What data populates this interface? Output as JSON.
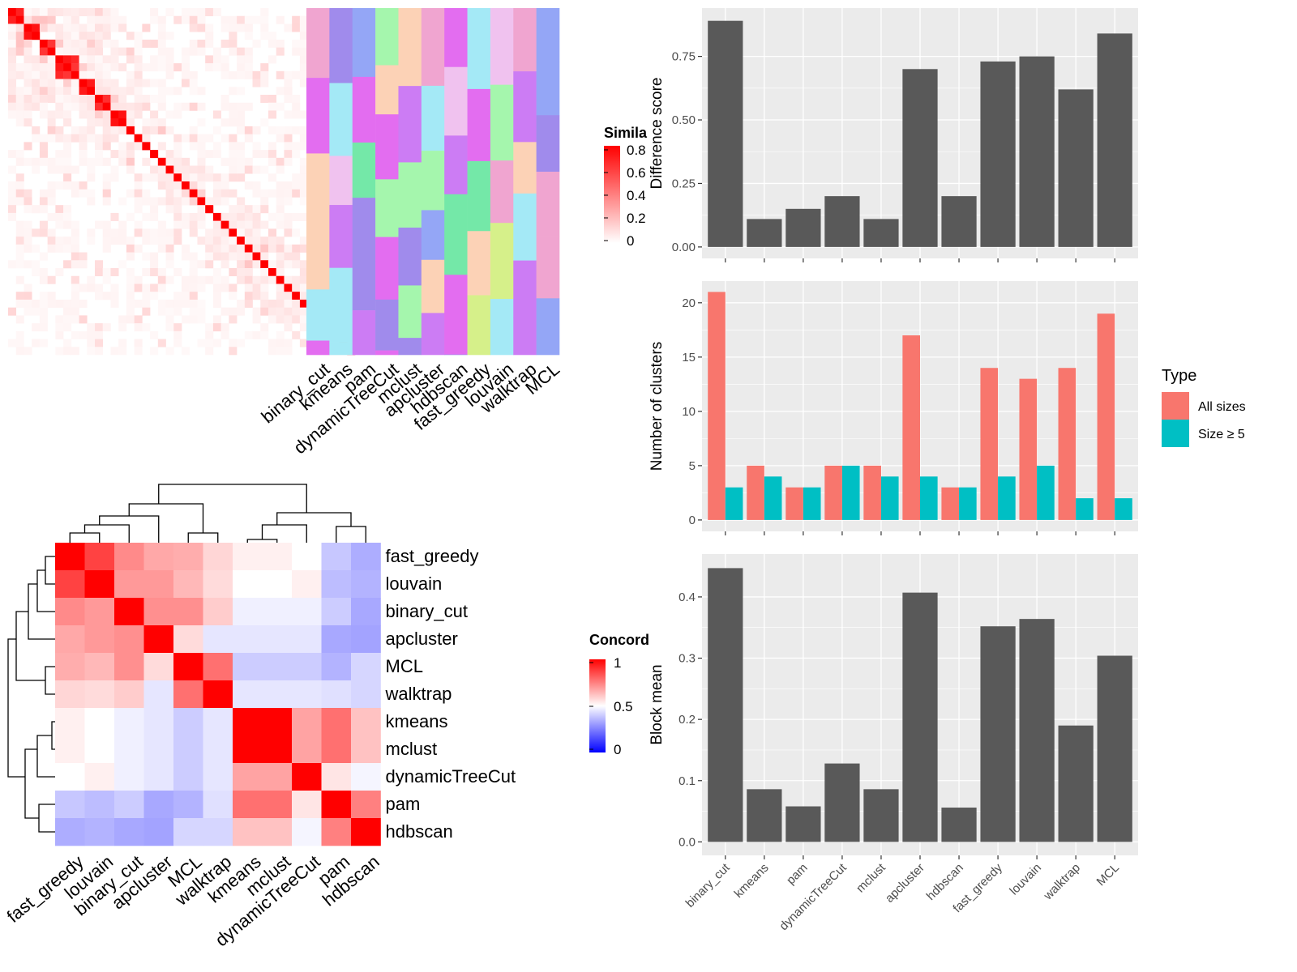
{
  "colors": {
    "panel_bg": "#ebebeb",
    "grid": "#ffffff",
    "bar": "#595959",
    "all_sizes": "#f8766d",
    "size5": "#00bfc4",
    "heat_high": "#ff0000",
    "heat_mid": "#ffffff",
    "heat_low": "#0000ff"
  },
  "chart_data": [
    {
      "type": "heatmap",
      "id": "similarity_matrix",
      "legend_title": "Simila",
      "legend_ticks": [
        "0.8",
        "0.6",
        "0.4",
        "0.2",
        "0"
      ],
      "block_sizes": [
        2,
        2,
        2,
        3,
        2,
        2,
        2,
        1,
        1,
        1,
        1,
        1,
        1,
        1,
        1,
        1,
        1,
        1,
        1,
        1,
        1,
        1,
        1,
        1,
        1,
        1,
        1,
        1,
        1,
        1,
        1,
        1,
        1,
        1,
        1,
        1
      ],
      "annotation_columns": [
        "binary_cut",
        "kmeans",
        "pam",
        "dynamicTreeCut",
        "mclust",
        "apcluster",
        "hdbscan",
        "fast_greedy",
        "louvain",
        "walktrap",
        "MCL"
      ]
    },
    {
      "type": "heatmap",
      "id": "concordance_matrix",
      "legend_title": "Concord",
      "legend_ticks": [
        "1",
        "0.5",
        "0"
      ],
      "rows": [
        "fast_greedy",
        "louvain",
        "binary_cut",
        "apcluster",
        "MCL",
        "walktrap",
        "kmeans",
        "mclust",
        "dynamicTreeCut",
        "pam",
        "hdbscan"
      ],
      "columns": [
        "fast_greedy",
        "louvain",
        "binary_cut",
        "apcluster",
        "MCL",
        "walktrap",
        "kmeans",
        "mclust",
        "dynamicTreeCut",
        "pam",
        "hdbscan"
      ],
      "values": [
        [
          1.0,
          0.87,
          0.73,
          0.67,
          0.66,
          0.58,
          0.53,
          0.53,
          0.5,
          0.39,
          0.34
        ],
        [
          0.87,
          1.0,
          0.7,
          0.7,
          0.64,
          0.57,
          0.5,
          0.5,
          0.53,
          0.37,
          0.35
        ],
        [
          0.73,
          0.7,
          1.0,
          0.72,
          0.72,
          0.6,
          0.47,
          0.47,
          0.47,
          0.4,
          0.33
        ],
        [
          0.67,
          0.7,
          0.72,
          1.0,
          0.57,
          0.45,
          0.45,
          0.45,
          0.45,
          0.33,
          0.32
        ],
        [
          0.66,
          0.64,
          0.72,
          0.57,
          1.0,
          0.78,
          0.4,
          0.4,
          0.4,
          0.35,
          0.42
        ],
        [
          0.58,
          0.57,
          0.6,
          0.45,
          0.78,
          1.0,
          0.45,
          0.45,
          0.45,
          0.44,
          0.42
        ],
        [
          0.53,
          0.5,
          0.47,
          0.45,
          0.4,
          0.45,
          1.0,
          1.0,
          0.68,
          0.78,
          0.62
        ],
        [
          0.53,
          0.5,
          0.47,
          0.45,
          0.4,
          0.45,
          1.0,
          1.0,
          0.68,
          0.78,
          0.62
        ],
        [
          0.5,
          0.53,
          0.47,
          0.45,
          0.4,
          0.45,
          0.68,
          0.68,
          1.0,
          0.55,
          0.48
        ],
        [
          0.39,
          0.37,
          0.4,
          0.33,
          0.35,
          0.44,
          0.78,
          0.78,
          0.55,
          1.0,
          0.75
        ],
        [
          0.34,
          0.35,
          0.33,
          0.32,
          0.42,
          0.42,
          0.62,
          0.62,
          0.48,
          0.75,
          1.0
        ]
      ]
    },
    {
      "type": "bar",
      "id": "difference_score",
      "categories": [
        "binary_cut",
        "kmeans",
        "pam",
        "dynamicTreeCut",
        "mclust",
        "apcluster",
        "hdbscan",
        "fast_greedy",
        "louvain",
        "walktrap",
        "MCL"
      ],
      "values": [
        0.89,
        0.11,
        0.15,
        0.2,
        0.11,
        0.7,
        0.2,
        0.73,
        0.75,
        0.62,
        0.84
      ],
      "ylabel": "Difference score",
      "yticks": [
        0.0,
        0.25,
        0.5,
        0.75
      ],
      "ytick_labels": [
        "0.00",
        "0.25",
        "0.50",
        "0.75"
      ],
      "ylim": [
        -0.045,
        0.94
      ],
      "grid": true
    },
    {
      "type": "bar",
      "id": "number_of_clusters",
      "categories": [
        "binary_cut",
        "kmeans",
        "pam",
        "dynamicTreeCut",
        "mclust",
        "apcluster",
        "hdbscan",
        "fast_greedy",
        "louvain",
        "walktrap",
        "MCL"
      ],
      "series": [
        {
          "name": "All sizes",
          "values": [
            21,
            5,
            3,
            5,
            5,
            17,
            3,
            14,
            13,
            14,
            19
          ]
        },
        {
          "name": "Size ≥ 5",
          "values": [
            3,
            4,
            3,
            5,
            4,
            4,
            3,
            4,
            5,
            2,
            2
          ]
        }
      ],
      "ylabel": "Number of clusters",
      "yticks": [
        0,
        5,
        10,
        15,
        20
      ],
      "ytick_labels": [
        "0",
        "5",
        "10",
        "15",
        "20"
      ],
      "ylim": [
        -1.05,
        22.0
      ],
      "legend_title": "Type",
      "legend_position": "right",
      "grid": true
    },
    {
      "type": "bar",
      "id": "block_mean",
      "categories": [
        "binary_cut",
        "kmeans",
        "pam",
        "dynamicTreeCut",
        "mclust",
        "apcluster",
        "hdbscan",
        "fast_greedy",
        "louvain",
        "walktrap",
        "MCL"
      ],
      "values": [
        0.447,
        0.086,
        0.058,
        0.128,
        0.086,
        0.407,
        0.056,
        0.352,
        0.364,
        0.19,
        0.304
      ],
      "ylabel": "Block mean",
      "yticks": [
        0.0,
        0.1,
        0.2,
        0.3,
        0.4
      ],
      "ytick_labels": [
        "0.0",
        "0.1",
        "0.2",
        "0.3",
        "0.4"
      ],
      "ylim": [
        -0.022,
        0.47
      ],
      "grid": true
    }
  ]
}
